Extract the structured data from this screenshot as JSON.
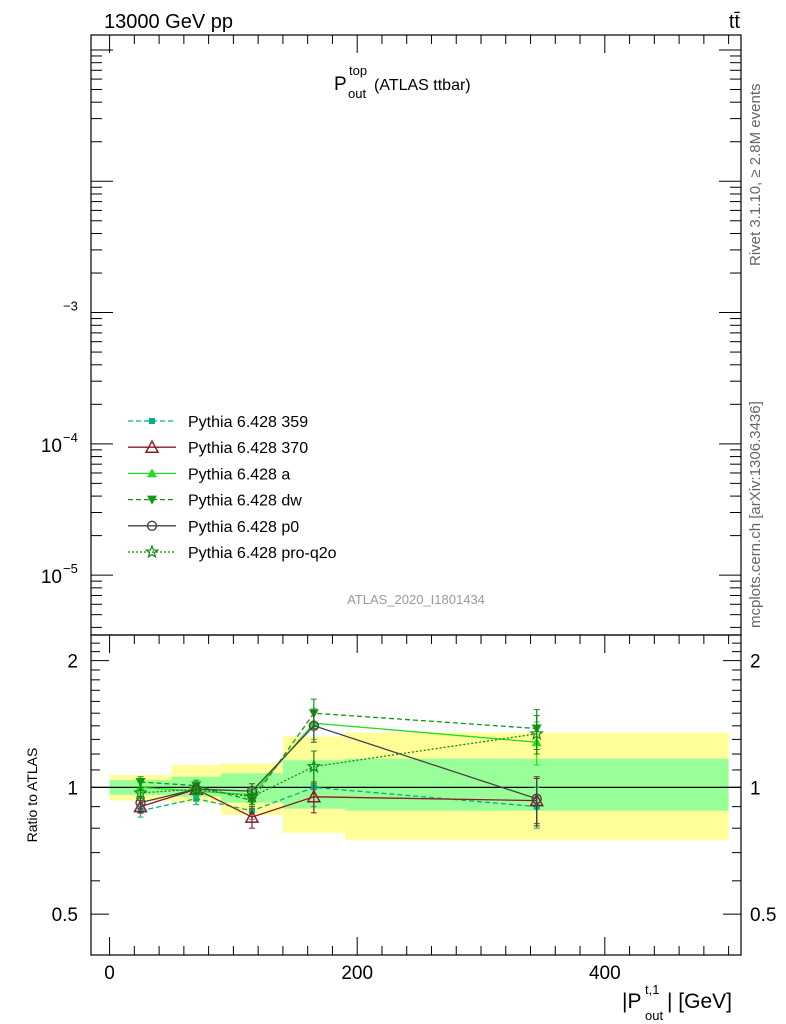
{
  "header": {
    "energy": "13000 GeV pp",
    "process": "tt̄"
  },
  "side_text": {
    "rivet": "Rivet 3.1.10, ≥ 2.8M events",
    "mcplots": "mcplots.cern.ch [arXiv:1306.3436]"
  },
  "title": {
    "main": "P",
    "sup": "top",
    "sub": "out",
    "rest": " (ATLAS ttbar)"
  },
  "analysis_id": "ATLAS_2020_I1801434",
  "xlabel": {
    "pre": "|P",
    "sup": "t,1",
    "sub": "out",
    "post": "| [GeV]"
  },
  "ratio_ylabel": "Ratio to ATLAS",
  "main_yticks": [
    {
      "mant": "",
      "exp": "−3",
      "value": 0.001
    },
    {
      "mant": "10",
      "exp": "−4",
      "value": 0.0001
    },
    {
      "mant": "10",
      "exp": "−5",
      "value": 1e-05
    }
  ],
  "ratio_yticks": [
    "2",
    "1",
    "0.5"
  ],
  "xticks": [
    "0",
    "200",
    "400"
  ],
  "legend": [
    {
      "label": "Pythia 6.428 359",
      "color": "#00b08a",
      "dash": "5,3",
      "marker": "square"
    },
    {
      "label": "Pythia 6.428 370",
      "color": "#8b1a2a",
      "dash": "",
      "marker": "triangle-open"
    },
    {
      "label": "Pythia 6.428 a",
      "color": "#22dd22",
      "dash": "",
      "marker": "triangle"
    },
    {
      "label": "Pythia 6.428 dw",
      "color": "#119911",
      "dash": "5,3",
      "marker": "triangle-down"
    },
    {
      "label": "Pythia 6.428 p0",
      "color": "#444444",
      "dash": "",
      "marker": "circle-open"
    },
    {
      "label": "Pythia 6.428 pro-q2o",
      "color": "#118811",
      "dash": "2,2",
      "marker": "star-open"
    }
  ],
  "chart_data": {
    "type": "line",
    "xlim": [
      -15,
      510
    ],
    "main_ylim_log": [
      3.5e-06,
      0.13
    ],
    "ratio_ylim": [
      0.4,
      2.3
    ],
    "ratio_bins": [
      {
        "x0": 0,
        "x1": 50,
        "yellow": [
          0.93,
          1.07
        ],
        "green": [
          0.96,
          1.04
        ]
      },
      {
        "x0": 50,
        "x1": 90,
        "yellow": [
          0.92,
          1.13
        ],
        "green": [
          0.95,
          1.06
        ]
      },
      {
        "x0": 90,
        "x1": 140,
        "yellow": [
          0.86,
          1.14
        ],
        "green": [
          0.92,
          1.08
        ]
      },
      {
        "x0": 140,
        "x1": 190,
        "yellow": [
          0.78,
          1.32
        ],
        "green": [
          0.89,
          1.16
        ]
      },
      {
        "x0": 190,
        "x1": 500,
        "yellow": [
          0.75,
          1.35
        ],
        "green": [
          0.88,
          1.17
        ]
      }
    ],
    "x": [
      25,
      70,
      115,
      165,
      345
    ],
    "series": [
      {
        "name": "Pythia 6.428 359",
        "values": [
          0.88,
          0.94,
          0.88,
          1.0,
          0.9
        ],
        "errors": [
          0.03,
          0.03,
          0.04,
          0.1,
          0.1
        ]
      },
      {
        "name": "Pythia 6.428 370",
        "values": [
          0.9,
          0.99,
          0.85,
          0.95,
          0.93
        ],
        "errors": [
          0.03,
          0.03,
          0.05,
          0.08,
          0.12
        ]
      },
      {
        "name": "Pythia 6.428 a",
        "values": [
          1.0,
          0.98,
          0.96,
          1.42,
          1.28
        ],
        "errors": [
          0.03,
          0.03,
          0.04,
          0.12,
          0.15
        ]
      },
      {
        "name": "Pythia 6.428 dw",
        "values": [
          1.03,
          1.01,
          0.93,
          1.5,
          1.38
        ],
        "errors": [
          0.03,
          0.03,
          0.04,
          0.12,
          0.15
        ]
      },
      {
        "name": "Pythia 6.428 p0",
        "values": [
          0.92,
          0.99,
          0.98,
          1.4,
          0.94
        ],
        "errors": [
          0.03,
          0.03,
          0.04,
          0.12,
          0.12
        ]
      },
      {
        "name": "Pythia 6.428 pro-q2o",
        "values": [
          0.97,
          0.99,
          0.95,
          1.12,
          1.34
        ],
        "errors": [
          0.03,
          0.03,
          0.04,
          0.1,
          0.14
        ]
      }
    ]
  }
}
